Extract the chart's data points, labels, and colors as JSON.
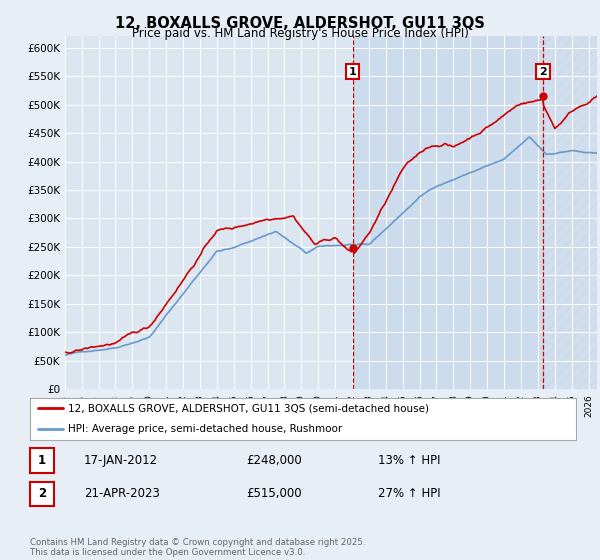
{
  "title": "12, BOXALLS GROVE, ALDERSHOT, GU11 3QS",
  "subtitle": "Price paid vs. HM Land Registry's House Price Index (HPI)",
  "ylim": [
    0,
    620000
  ],
  "yticks": [
    0,
    50000,
    100000,
    150000,
    200000,
    250000,
    300000,
    350000,
    400000,
    450000,
    500000,
    550000,
    600000
  ],
  "ytick_labels": [
    "£0",
    "£50K",
    "£100K",
    "£150K",
    "£200K",
    "£250K",
    "£300K",
    "£350K",
    "£400K",
    "£450K",
    "£500K",
    "£550K",
    "£600K"
  ],
  "property_color": "#cc0000",
  "hpi_color": "#6699cc",
  "sale1_x": 2012.04,
  "sale1_y": 248000,
  "sale1_date": "17-JAN-2012",
  "sale1_price": 248000,
  "sale1_pct": "13% ↑ HPI",
  "sale2_x": 2023.3,
  "sale2_y": 515000,
  "sale2_date": "21-APR-2023",
  "sale2_price": 515000,
  "sale2_pct": "27% ↑ HPI",
  "legend_property": "12, BOXALLS GROVE, ALDERSHOT, GU11 3QS (semi-detached house)",
  "legend_hpi": "HPI: Average price, semi-detached house, Rushmoor",
  "footer": "Contains HM Land Registry data © Crown copyright and database right 2025.\nThis data is licensed under the Open Government Licence v3.0.",
  "background_color": "#e8eef5",
  "plot_bg_color": "#dce6f0",
  "shade_color": "#c8d8ec",
  "xmin": 1995,
  "xmax": 2026.5
}
